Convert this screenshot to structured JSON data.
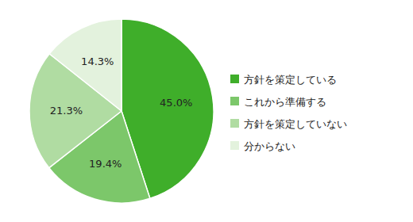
{
  "chart_data": {
    "type": "pie",
    "categories": [
      "方針を策定している",
      "これから準備する",
      "方針を策定していない",
      "分からない"
    ],
    "values": [
      45.0,
      19.4,
      21.3,
      14.3
    ],
    "value_labels": [
      "45.0%",
      "19.4%",
      "21.3%",
      "14.3%"
    ],
    "colors": [
      "#3fae2a",
      "#7cc76a",
      "#b0dca2",
      "#e3f2dd"
    ],
    "data_labels": true,
    "legend": "right"
  }
}
